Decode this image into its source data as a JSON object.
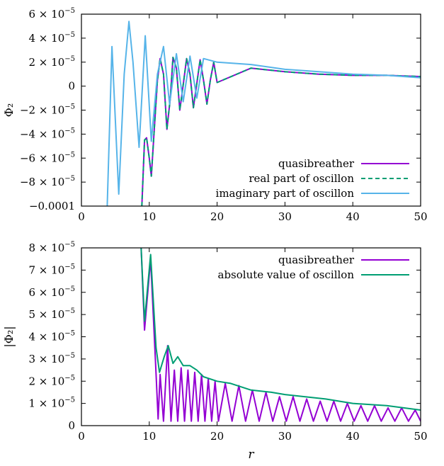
{
  "chart_data": [
    {
      "type": "line",
      "ylabel": "Φ₂",
      "xlim": [
        0,
        50
      ],
      "ylim": [
        -0.0001,
        6e-05
      ],
      "xticks": [
        0,
        10,
        20,
        30,
        40,
        50
      ],
      "xtick_labels": [
        "0",
        "10",
        "20",
        "30",
        "40",
        "50"
      ],
      "yticks": [
        -0.0001,
        -8e-05,
        -6e-05,
        -4e-05,
        -2e-05,
        0,
        2e-05,
        4e-05,
        6e-05
      ],
      "ytick_labels": [
        {
          "coef": "−0.0001",
          "exp": ""
        },
        {
          "coef": "−8 × 10",
          "exp": "−5"
        },
        {
          "coef": "−6 × 10",
          "exp": "−5"
        },
        {
          "coef": "−4 × 10",
          "exp": "−5"
        },
        {
          "coef": "−2 × 10",
          "exp": "−5"
        },
        {
          "coef": "0",
          "exp": ""
        },
        {
          "coef": "2 × 10",
          "exp": "−5"
        },
        {
          "coef": "4 × 10",
          "exp": "−5"
        },
        {
          "coef": "6 × 10",
          "exp": "−5"
        }
      ],
      "grid": false,
      "legend_position": "bottom-right",
      "series": [
        {
          "name": "quasibreather",
          "color": "#9400d3",
          "dash": "solid",
          "x": [
            8.9,
            9.3,
            9.6,
            10.0,
            10.3,
            10.8,
            11.2,
            11.6,
            12.1,
            12.6,
            13.1,
            13.5,
            14.0,
            14.5,
            15.0,
            15.5,
            16.0,
            16.5,
            17.0,
            17.5,
            18.0,
            18.5,
            19.0,
            19.5,
            20.0,
            25.0,
            30.0,
            35.0,
            40.0,
            45.0,
            50.0
          ],
          "y": [
            -0.0001,
            -4.5e-05,
            -4.3e-05,
            -6e-05,
            -7.5e-05,
            -3e-05,
            5e-06,
            2.3e-05,
            1e-05,
            -3.6e-05,
            -1e-05,
            2.4e-05,
            1.5e-05,
            -2e-05,
            1e-06,
            2.3e-05,
            1e-05,
            -1.8e-05,
            2e-06,
            2.2e-05,
            5e-06,
            -1.5e-05,
            5e-06,
            2e-05,
            3e-06,
            1.5e-05,
            1.2e-05,
            1e-05,
            9e-06,
            9e-06,
            8e-06
          ]
        },
        {
          "name": "real part of oscillon",
          "color": "#009e73",
          "dash": "dashed",
          "x": [
            8.9,
            9.3,
            9.6,
            10.0,
            10.3,
            10.8,
            11.2,
            11.6,
            12.1,
            12.6,
            13.1,
            13.5,
            14.0,
            14.5,
            15.0,
            15.5,
            16.0,
            16.5,
            17.0,
            17.5,
            18.0,
            18.5,
            19.0,
            19.5,
            20.0,
            25.0,
            30.0,
            35.0,
            40.0,
            45.0,
            50.0
          ],
          "y": [
            -0.0001,
            -4.5e-05,
            -4.3e-05,
            -6e-05,
            -7.5e-05,
            -3e-05,
            5e-06,
            2.3e-05,
            1e-05,
            -3.6e-05,
            -1e-05,
            2.4e-05,
            1.5e-05,
            -2e-05,
            1e-06,
            2.3e-05,
            1e-05,
            -1.8e-05,
            2e-06,
            2.2e-05,
            5e-06,
            -1.5e-05,
            5e-06,
            2e-05,
            3e-06,
            1.5e-05,
            1.2e-05,
            1e-05,
            9e-06,
            9e-06,
            8e-06
          ]
        },
        {
          "name": "imaginary part of oscillon",
          "color": "#56b4e9",
          "dash": "solid",
          "x": [
            3.8,
            4.5,
            5.5,
            6.3,
            7.0,
            7.6,
            8.5,
            9.4,
            10.3,
            11.2,
            12.1,
            13.0,
            14.0,
            15.0,
            16.0,
            17.0,
            18.0,
            20.0,
            25.0,
            30.0,
            35.0,
            40.0,
            45.0,
            50.0
          ],
          "y": [
            -0.0001,
            3.3e-05,
            -9e-05,
            1e-05,
            5.4e-05,
            2e-05,
            -5.1e-05,
            4.2e-05,
            -4.6e-05,
            1e-05,
            3.3e-05,
            -1.5e-05,
            2.7e-05,
            -1.3e-05,
            2.5e-05,
            -1e-05,
            2.3e-05,
            2e-05,
            1.8e-05,
            1.4e-05,
            1.2e-05,
            1e-05,
            9e-06,
            7e-06
          ]
        }
      ]
    },
    {
      "type": "line",
      "xlabel": "r",
      "ylabel": "|Φ₂|",
      "xlim": [
        0,
        50
      ],
      "ylim": [
        0,
        8e-05
      ],
      "xticks": [
        0,
        10,
        20,
        30,
        40,
        50
      ],
      "xtick_labels": [
        "0",
        "10",
        "20",
        "30",
        "40",
        "50"
      ],
      "yticks": [
        0,
        1e-05,
        2e-05,
        3e-05,
        4e-05,
        5e-05,
        6e-05,
        7e-05,
        8e-05
      ],
      "ytick_labels": [
        {
          "coef": "0",
          "exp": ""
        },
        {
          "coef": "1 × 10",
          "exp": "−5"
        },
        {
          "coef": "2 × 10",
          "exp": "−5"
        },
        {
          "coef": "3 × 10",
          "exp": "−5"
        },
        {
          "coef": "4 × 10",
          "exp": "−5"
        },
        {
          "coef": "5 × 10",
          "exp": "−5"
        },
        {
          "coef": "6 × 10",
          "exp": "−5"
        },
        {
          "coef": "7 × 10",
          "exp": "−5"
        },
        {
          "coef": "8 × 10",
          "exp": "−5"
        }
      ],
      "grid": false,
      "legend_position": "top-right",
      "series": [
        {
          "name": "quasibreather",
          "color": "#9400d3",
          "dash": "solid",
          "x": [
            8.8,
            9.3,
            10.2,
            10.9,
            11.3,
            11.6,
            12.1,
            12.7,
            13.2,
            13.7,
            14.2,
            14.7,
            15.2,
            15.7,
            16.2,
            16.7,
            17.2,
            17.7,
            18.2,
            18.7,
            19.2,
            19.7,
            20.2,
            21.2,
            22.2,
            23.2,
            24.2,
            25.2,
            26.2,
            27.2,
            28.2,
            29.2,
            30.2,
            31.2,
            32.2,
            33.2,
            34.2,
            35.2,
            36.2,
            37.2,
            38.2,
            39.2,
            40.2,
            41.2,
            42.2,
            43.2,
            44.2,
            45.2,
            46.2,
            47.2,
            48.2,
            49.2,
            50.0
          ],
          "y": [
            8e-05,
            4.3e-05,
            7.5e-05,
            3e-05,
            3e-06,
            2.3e-05,
            2e-06,
            3.6e-05,
            2e-06,
            2.5e-05,
            2e-06,
            2.6e-05,
            2e-06,
            2.5e-05,
            2e-06,
            2.4e-05,
            2e-06,
            2.3e-05,
            2e-06,
            2.1e-05,
            2e-06,
            2e-05,
            2e-06,
            1.9e-05,
            2e-06,
            1.8e-05,
            2e-06,
            1.6e-05,
            2e-06,
            1.5e-05,
            2e-06,
            1.3e-05,
            2e-06,
            1.3e-05,
            2e-06,
            1.2e-05,
            2e-06,
            1.1e-05,
            2e-06,
            1.1e-05,
            2e-06,
            1e-05,
            2e-06,
            9e-06,
            2e-06,
            9e-06,
            2e-06,
            8e-06,
            2e-06,
            8e-06,
            2e-06,
            7e-06,
            2e-06
          ]
        },
        {
          "name": "absolute value of oscillon",
          "color": "#009e73",
          "dash": "solid",
          "x": [
            8.8,
            9.3,
            10.2,
            11.0,
            11.5,
            12.2,
            12.8,
            13.5,
            14.2,
            15.0,
            16.0,
            17.0,
            18.0,
            20.0,
            22.0,
            25.0,
            28.0,
            30.0,
            33.0,
            36.0,
            40.0,
            45.0,
            50.0
          ],
          "y": [
            8e-05,
            4.7e-05,
            7.7e-05,
            3.5e-05,
            2.4e-05,
            3.1e-05,
            3.6e-05,
            2.8e-05,
            3.1e-05,
            2.7e-05,
            2.7e-05,
            2.5e-05,
            2.2e-05,
            2e-05,
            1.9e-05,
            1.6e-05,
            1.5e-05,
            1.4e-05,
            1.3e-05,
            1.2e-05,
            1e-05,
            9e-06,
            7e-06
          ]
        }
      ]
    }
  ]
}
